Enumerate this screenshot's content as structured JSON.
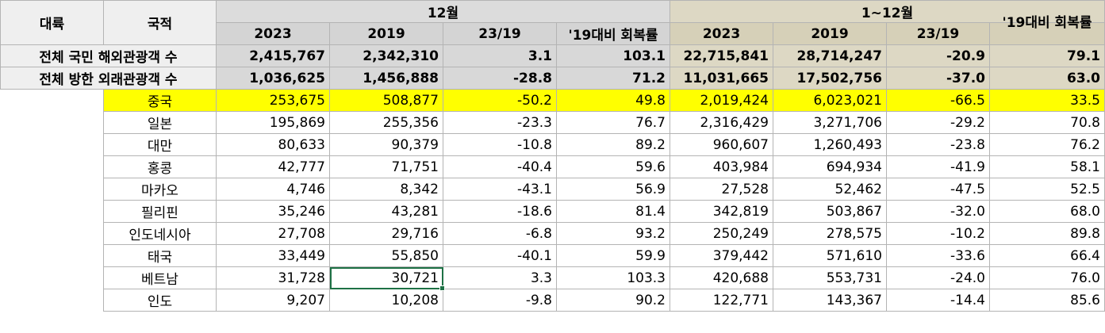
{
  "header": {
    "continent": "대륙",
    "nationality": "국적",
    "month_group": "12월",
    "year_group": "1~12월",
    "sub": [
      "2023",
      "2019",
      "23/19",
      "'19대비 회복률",
      "2023",
      "2019",
      "23/19",
      "'19대비 회복률"
    ]
  },
  "totals": [
    {
      "label": "전체 국민 해외관광객 수",
      "values": [
        "2,415,767",
        "2,342,310",
        "3.1",
        "103.1",
        "22,715,841",
        "28,714,247",
        "-20.9",
        "79.1"
      ]
    },
    {
      "label": "전체 방한 외래관광객 수",
      "values": [
        "1,036,625",
        "1,456,888",
        "-28.8",
        "71.2",
        "11,031,665",
        "17,502,756",
        "-37.0",
        "63.0"
      ]
    }
  ],
  "rows": [
    {
      "country": "중국",
      "values": [
        "253,675",
        "508,877",
        "-50.2",
        "49.8",
        "2,019,424",
        "6,023,021",
        "-66.5",
        "33.5"
      ]
    },
    {
      "country": "일본",
      "values": [
        "195,869",
        "255,356",
        "-23.3",
        "76.7",
        "2,316,429",
        "3,271,706",
        "-29.2",
        "70.8"
      ]
    },
    {
      "country": "대만",
      "values": [
        "80,633",
        "90,379",
        "-10.8",
        "89.2",
        "960,607",
        "1,260,493",
        "-23.8",
        "76.2"
      ]
    },
    {
      "country": "홍콩",
      "values": [
        "42,777",
        "71,751",
        "-40.4",
        "59.6",
        "403,984",
        "694,934",
        "-41.9",
        "58.1"
      ]
    },
    {
      "country": "마카오",
      "values": [
        "4,746",
        "8,342",
        "-43.1",
        "56.9",
        "27,528",
        "52,462",
        "-47.5",
        "52.5"
      ]
    },
    {
      "country": "필리핀",
      "values": [
        "35,246",
        "43,281",
        "-18.6",
        "81.4",
        "342,819",
        "503,867",
        "-32.0",
        "68.0"
      ]
    },
    {
      "country": "인도네시아",
      "values": [
        "27,708",
        "29,716",
        "-6.8",
        "93.2",
        "250,249",
        "278,575",
        "-10.2",
        "89.8"
      ]
    },
    {
      "country": "태국",
      "values": [
        "33,449",
        "55,850",
        "-40.1",
        "59.9",
        "379,442",
        "571,610",
        "-33.6",
        "66.4"
      ]
    },
    {
      "country": "베트남",
      "values": [
        "31,728",
        "30,721",
        "3.3",
        "103.3",
        "420,688",
        "553,731",
        "-24.0",
        "76.0"
      ]
    },
    {
      "country": "인도",
      "values": [
        "9,207",
        "10,208",
        "-9.8",
        "90.2",
        "122,771",
        "143,367",
        "-14.4",
        "85.6"
      ]
    }
  ]
}
